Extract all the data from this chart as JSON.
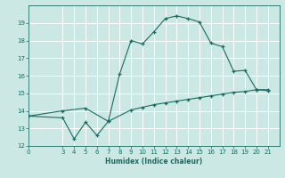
{
  "title": "",
  "xlabel": "Humidex (Indice chaleur)",
  "bg_color": "#cce8e5",
  "grid_color": "#ffffff",
  "line_color": "#1a6b60",
  "xlim": [
    0,
    22
  ],
  "ylim": [
    12,
    20
  ],
  "xticks": [
    0,
    3,
    4,
    5,
    6,
    7,
    8,
    9,
    10,
    11,
    12,
    13,
    14,
    15,
    16,
    17,
    18,
    19,
    20,
    21
  ],
  "yticks": [
    12,
    13,
    14,
    15,
    16,
    17,
    18,
    19
  ],
  "curve1_x": [
    0,
    3,
    4,
    5,
    6,
    7,
    8,
    9,
    10,
    11,
    12,
    13,
    14,
    15,
    16,
    17,
    18,
    19,
    20,
    21
  ],
  "curve1_y": [
    13.7,
    13.6,
    12.4,
    13.35,
    12.6,
    13.4,
    16.1,
    18.0,
    17.8,
    18.5,
    19.25,
    19.4,
    19.25,
    19.05,
    17.85,
    17.65,
    16.25,
    16.3,
    15.2,
    15.15
  ],
  "curve2_x": [
    0,
    3,
    5,
    7,
    9,
    10,
    11,
    12,
    13,
    14,
    15,
    16,
    17,
    18,
    19,
    20,
    21
  ],
  "curve2_y": [
    13.7,
    14.0,
    14.15,
    13.4,
    14.05,
    14.2,
    14.35,
    14.45,
    14.55,
    14.65,
    14.75,
    14.85,
    14.95,
    15.05,
    15.1,
    15.2,
    15.2
  ]
}
